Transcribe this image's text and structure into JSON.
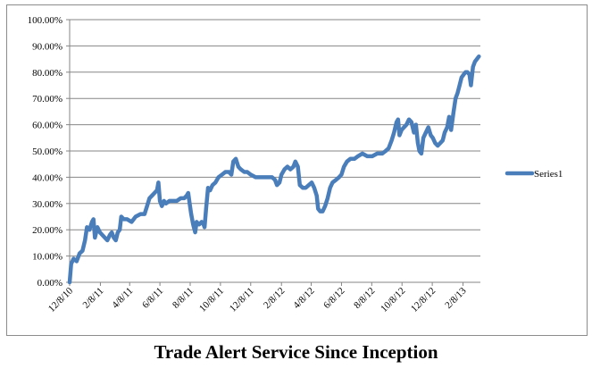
{
  "caption": "Trade Alert Service Since Inception",
  "chart_data": {
    "type": "line",
    "title": "",
    "xlabel": "",
    "ylabel": "",
    "x_ticks": [
      "12/8/10",
      "2/8/11",
      "4/8/11",
      "6/8/11",
      "8/8/11",
      "10/8/11",
      "12/8/11",
      "2/8/12",
      "4/8/12",
      "6/8/12",
      "8/8/12",
      "10/8/12",
      "12/8/12",
      "2/8/13"
    ],
    "y_ticks": [
      "0.00%",
      "10.00%",
      "20.00%",
      "30.00%",
      "40.00%",
      "50.00%",
      "60.00%",
      "70.00%",
      "80.00%",
      "90.00%",
      "100.00%"
    ],
    "ylim": [
      0,
      100
    ],
    "xlim": [
      "2010-12-08",
      "2013-03-15"
    ],
    "grid": "horizontal",
    "legend": "right",
    "series": [
      {
        "name": "Series1",
        "color": "#4a7ebb",
        "points": [
          [
            "2010-12-08",
            0
          ],
          [
            "2010-12-11",
            7
          ],
          [
            "2010-12-16",
            9
          ],
          [
            "2010-12-22",
            8
          ],
          [
            "2010-12-28",
            11
          ],
          [
            "2011-01-03",
            12
          ],
          [
            "2011-01-08",
            16
          ],
          [
            "2011-01-12",
            21
          ],
          [
            "2011-01-17",
            20
          ],
          [
            "2011-01-22",
            23
          ],
          [
            "2011-01-25",
            24
          ],
          [
            "2011-01-28",
            17
          ],
          [
            "2011-02-02",
            21
          ],
          [
            "2011-02-07",
            19
          ],
          [
            "2011-02-12",
            18
          ],
          [
            "2011-02-17",
            17
          ],
          [
            "2011-02-22",
            16
          ],
          [
            "2011-02-27",
            18
          ],
          [
            "2011-03-03",
            19
          ],
          [
            "2011-03-07",
            17
          ],
          [
            "2011-03-11",
            16
          ],
          [
            "2011-03-15",
            19
          ],
          [
            "2011-03-19",
            20
          ],
          [
            "2011-03-22",
            25
          ],
          [
            "2011-03-27",
            24
          ],
          [
            "2011-04-03",
            24
          ],
          [
            "2011-04-12",
            23
          ],
          [
            "2011-04-20",
            25
          ],
          [
            "2011-04-30",
            26
          ],
          [
            "2011-05-08",
            26
          ],
          [
            "2011-05-13",
            29
          ],
          [
            "2011-05-18",
            32
          ],
          [
            "2011-05-23",
            33
          ],
          [
            "2011-05-28",
            34
          ],
          [
            "2011-06-02",
            35
          ],
          [
            "2011-06-05",
            38
          ],
          [
            "2011-06-08",
            31
          ],
          [
            "2011-06-12",
            29
          ],
          [
            "2011-06-16",
            31
          ],
          [
            "2011-06-20",
            30
          ],
          [
            "2011-06-27",
            31
          ],
          [
            "2011-07-05",
            31
          ],
          [
            "2011-07-12",
            31
          ],
          [
            "2011-07-20",
            32
          ],
          [
            "2011-07-27",
            32
          ],
          [
            "2011-08-01",
            33
          ],
          [
            "2011-08-04",
            34
          ],
          [
            "2011-08-07",
            30
          ],
          [
            "2011-08-10",
            26
          ],
          [
            "2011-08-14",
            22
          ],
          [
            "2011-08-18",
            19
          ],
          [
            "2011-08-21",
            23
          ],
          [
            "2011-08-26",
            22
          ],
          [
            "2011-08-31",
            23
          ],
          [
            "2011-09-04",
            22
          ],
          [
            "2011-09-06",
            21
          ],
          [
            "2011-09-09",
            28
          ],
          [
            "2011-09-13",
            36
          ],
          [
            "2011-09-17",
            35
          ],
          [
            "2011-09-22",
            37
          ],
          [
            "2011-09-28",
            38
          ],
          [
            "2011-10-04",
            40
          ],
          [
            "2011-10-11",
            41
          ],
          [
            "2011-10-18",
            42
          ],
          [
            "2011-10-25",
            42
          ],
          [
            "2011-10-30",
            41
          ],
          [
            "2011-11-03",
            46
          ],
          [
            "2011-11-08",
            47
          ],
          [
            "2011-11-13",
            44
          ],
          [
            "2011-11-18",
            43
          ],
          [
            "2011-11-25",
            42
          ],
          [
            "2011-12-01",
            42
          ],
          [
            "2011-12-08",
            41
          ],
          [
            "2011-12-18",
            40
          ],
          [
            "2011-12-30",
            40
          ],
          [
            "2012-01-10",
            40
          ],
          [
            "2012-01-20",
            40
          ],
          [
            "2012-01-26",
            39
          ],
          [
            "2012-01-30",
            37
          ],
          [
            "2012-02-04",
            38
          ],
          [
            "2012-02-08",
            41
          ],
          [
            "2012-02-14",
            43
          ],
          [
            "2012-02-20",
            44
          ],
          [
            "2012-02-26",
            43
          ],
          [
            "2012-03-03",
            44
          ],
          [
            "2012-03-07",
            46
          ],
          [
            "2012-03-12",
            44
          ],
          [
            "2012-03-16",
            37
          ],
          [
            "2012-03-22",
            36
          ],
          [
            "2012-03-28",
            36
          ],
          [
            "2012-04-03",
            37
          ],
          [
            "2012-04-09",
            38
          ],
          [
            "2012-04-14",
            36
          ],
          [
            "2012-04-19",
            33
          ],
          [
            "2012-04-22",
            28
          ],
          [
            "2012-04-26",
            27
          ],
          [
            "2012-05-01",
            27
          ],
          [
            "2012-05-06",
            29
          ],
          [
            "2012-05-11",
            32
          ],
          [
            "2012-05-16",
            36
          ],
          [
            "2012-05-21",
            38
          ],
          [
            "2012-05-28",
            39
          ],
          [
            "2012-06-03",
            40
          ],
          [
            "2012-06-08",
            41
          ],
          [
            "2012-06-13",
            44
          ],
          [
            "2012-06-19",
            46
          ],
          [
            "2012-06-26",
            47
          ],
          [
            "2012-07-04",
            47
          ],
          [
            "2012-07-11",
            48
          ],
          [
            "2012-07-20",
            49
          ],
          [
            "2012-07-30",
            48
          ],
          [
            "2012-08-09",
            48
          ],
          [
            "2012-08-19",
            49
          ],
          [
            "2012-08-29",
            49
          ],
          [
            "2012-09-05",
            50
          ],
          [
            "2012-09-11",
            51
          ],
          [
            "2012-09-17",
            54
          ],
          [
            "2012-09-22",
            57
          ],
          [
            "2012-09-27",
            61
          ],
          [
            "2012-09-30",
            62
          ],
          [
            "2012-10-03",
            56
          ],
          [
            "2012-10-07",
            58
          ],
          [
            "2012-10-12",
            59
          ],
          [
            "2012-10-17",
            60
          ],
          [
            "2012-10-22",
            62
          ],
          [
            "2012-10-27",
            61
          ],
          [
            "2012-11-01",
            57
          ],
          [
            "2012-11-05",
            60
          ],
          [
            "2012-11-09",
            53
          ],
          [
            "2012-11-12",
            50
          ],
          [
            "2012-11-16",
            49
          ],
          [
            "2012-11-20",
            55
          ],
          [
            "2012-11-25",
            57
          ],
          [
            "2012-11-30",
            59
          ],
          [
            "2012-12-05",
            56
          ],
          [
            "2012-12-09",
            55
          ],
          [
            "2012-12-14",
            53
          ],
          [
            "2012-12-19",
            52
          ],
          [
            "2012-12-24",
            53
          ],
          [
            "2012-12-29",
            54
          ],
          [
            "2013-01-02",
            57
          ],
          [
            "2013-01-07",
            59
          ],
          [
            "2013-01-11",
            63
          ],
          [
            "2013-01-15",
            58
          ],
          [
            "2013-01-20",
            65
          ],
          [
            "2013-01-24",
            70
          ],
          [
            "2013-01-28",
            72
          ],
          [
            "2013-02-01",
            75
          ],
          [
            "2013-02-05",
            78
          ],
          [
            "2013-02-09",
            79
          ],
          [
            "2013-02-13",
            80
          ],
          [
            "2013-02-17",
            80
          ],
          [
            "2013-02-21",
            79
          ],
          [
            "2013-02-24",
            75
          ],
          [
            "2013-02-28",
            82
          ],
          [
            "2013-03-04",
            84
          ],
          [
            "2013-03-08",
            85
          ],
          [
            "2013-03-12",
            86
          ]
        ]
      }
    ]
  }
}
